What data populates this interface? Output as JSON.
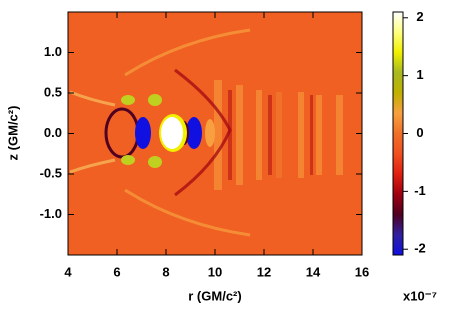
{
  "chart_data": {
    "type": "heatmap",
    "x_label": "r (GM/c²)",
    "y_label": "z (GM/c²)",
    "xlim": [
      4,
      16
    ],
    "xticks": [
      4,
      6,
      8,
      10,
      12,
      14,
      16
    ],
    "ylim": [
      -1.5,
      1.5
    ],
    "yticks": [
      {
        "value": -1,
        "label": "-1.0"
      },
      -0.5,
      {
        "value": 0,
        "label": "0.0"
      },
      0.5,
      {
        "value": 1,
        "label": "1.0"
      }
    ],
    "colorbar": {
      "lim": [
        -2.1,
        2.1
      ],
      "ticks": [
        -2,
        -1,
        0,
        1,
        2
      ],
      "label": "x10⁻⁷",
      "colorscale": [
        "#1010e0",
        "#3020a0",
        "#500020",
        "#a00010",
        "#e02010",
        "#f05020",
        "#f07028",
        "#f8a040",
        "#c0b000",
        "#a8b820",
        "#f0f000",
        "#ffff80",
        "#ffffff"
      ]
    }
  }
}
